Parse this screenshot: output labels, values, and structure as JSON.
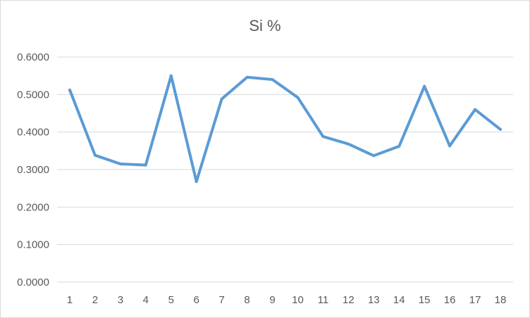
{
  "chart_data": {
    "type": "line",
    "title": "Si %",
    "xlabel": "",
    "ylabel": "",
    "categories": [
      "1",
      "2",
      "3",
      "4",
      "5",
      "6",
      "7",
      "8",
      "9",
      "10",
      "11",
      "12",
      "13",
      "14",
      "15",
      "16",
      "17",
      "18"
    ],
    "series": [
      {
        "values": [
          0.512,
          0.338,
          0.315,
          0.312,
          0.55,
          0.268,
          0.488,
          0.546,
          0.54,
          0.492,
          0.388,
          0.368,
          0.337,
          0.362,
          0.522,
          0.363,
          0.46,
          0.407
        ],
        "color": "#5b9bd5"
      }
    ],
    "ylim": [
      0,
      0.6
    ],
    "yticks": [
      "0.0000",
      "0.1000",
      "0.2000",
      "0.3000",
      "0.4000",
      "0.5000",
      "0.6000"
    ],
    "grid": true,
    "legend": "none"
  }
}
